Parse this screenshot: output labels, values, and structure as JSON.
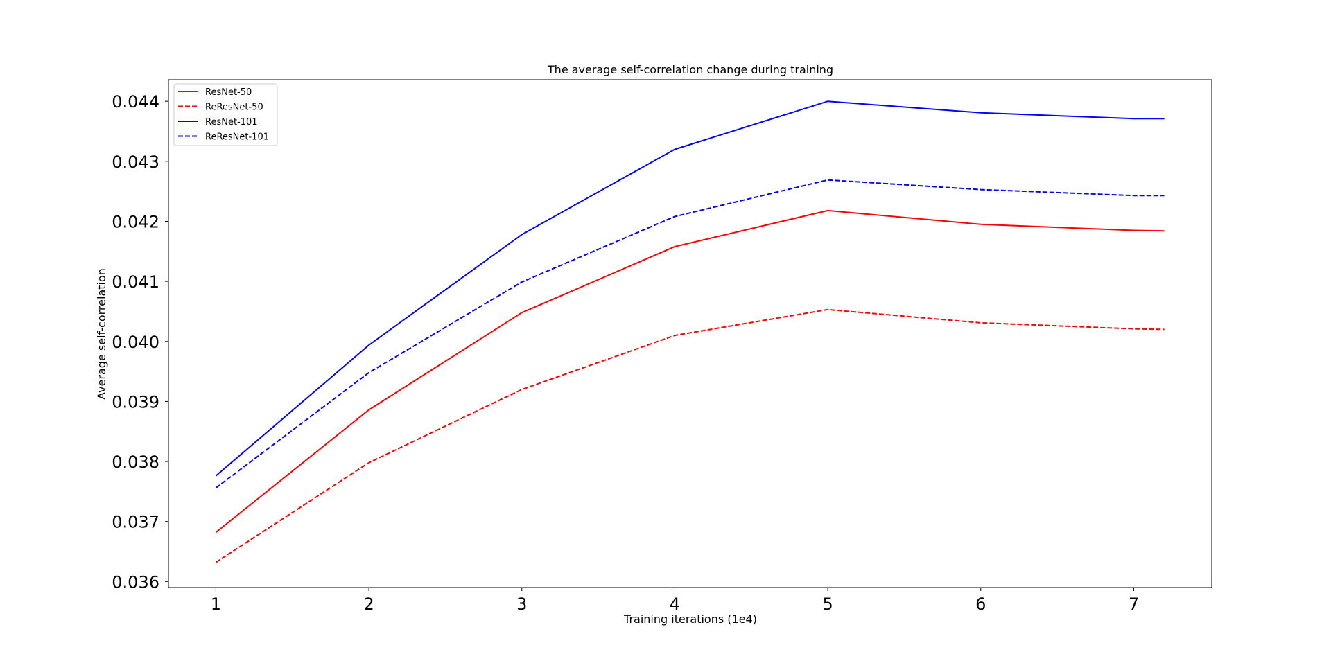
{
  "chart_data": {
    "type": "line",
    "title": "The average self-correlation change during training",
    "xlabel": "Training iterations (1e4)",
    "ylabel": "Average self-correlation",
    "xlim": [
      0.69,
      7.51
    ],
    "ylim": [
      0.0359,
      0.04436
    ],
    "x": [
      1,
      2,
      3,
      4,
      5,
      6,
      7,
      7.2
    ],
    "xticks": [
      "1",
      "2",
      "3",
      "4",
      "5",
      "6",
      "7"
    ],
    "yticks": [
      "0.036",
      "0.037",
      "0.038",
      "0.039",
      "0.040",
      "0.041",
      "0.042",
      "0.043",
      "0.044"
    ],
    "grid": false,
    "legend_position": "upper-left",
    "series": [
      {
        "name": "ResNet-50",
        "color": "#ff0000",
        "style": "solid",
        "values": [
          0.03682,
          0.03886,
          0.04048,
          0.04158,
          0.04218,
          0.04195,
          0.04185,
          0.04184
        ]
      },
      {
        "name": "ReResNet-50",
        "color": "#ff0000",
        "style": "dashed",
        "values": [
          0.03632,
          0.03798,
          0.0392,
          0.0401,
          0.04053,
          0.04031,
          0.04021,
          0.0402
        ]
      },
      {
        "name": "ResNet-101",
        "color": "#0000ff",
        "style": "solid",
        "values": [
          0.03776,
          0.03994,
          0.04178,
          0.0432,
          0.044,
          0.04381,
          0.04371,
          0.04371
        ]
      },
      {
        "name": "ReResNet-101",
        "color": "#0000ff",
        "style": "dashed",
        "values": [
          0.03756,
          0.03948,
          0.04099,
          0.04208,
          0.04269,
          0.04253,
          0.04243,
          0.04243
        ]
      }
    ]
  }
}
